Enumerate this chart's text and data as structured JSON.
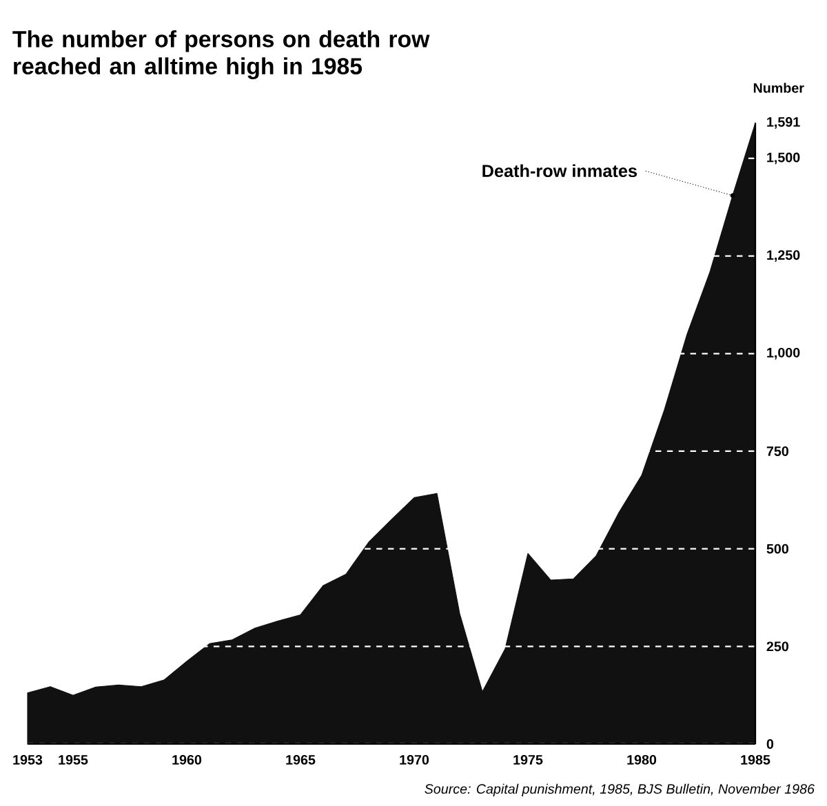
{
  "chart_data": {
    "type": "area",
    "title": "The number of persons on death row reached an alltime high in 1985",
    "ylabel": "Number",
    "x": [
      1953,
      1954,
      1955,
      1956,
      1957,
      1958,
      1959,
      1960,
      1961,
      1962,
      1963,
      1964,
      1965,
      1966,
      1967,
      1968,
      1969,
      1970,
      1971,
      1972,
      1973,
      1974,
      1975,
      1976,
      1977,
      1978,
      1979,
      1980,
      1981,
      1982,
      1983,
      1984,
      1985
    ],
    "series": [
      {
        "color": "#111111",
        "values": [
          131,
          147,
          125,
          146,
          151,
          147,
          164,
          212,
          257,
          267,
          297,
          315,
          331,
          406,
          435,
          517,
          575,
          631,
          642,
          334,
          134,
          244,
          488,
          420,
          423,
          482,
          593,
          688,
          856,
          1050,
          1209,
          1405,
          1591
        ]
      }
    ],
    "xlim": [
      1953,
      1985
    ],
    "xticks": [
      1953,
      1955,
      1960,
      1965,
      1970,
      1975,
      1980,
      1985
    ],
    "ylim": [
      0,
      1591
    ],
    "yticks": [
      0,
      250,
      500,
      750,
      {
        "value": 1000,
        "label": "1,000"
      },
      {
        "value": 1250,
        "label": "1,250"
      },
      {
        "value": 1500,
        "label": "1,500"
      },
      {
        "value": 1591,
        "label": "1,591"
      }
    ],
    "grid": "y",
    "annotations": [
      {
        "text": "Death-row inmates",
        "x": 1984,
        "y": 1405
      },
      "Source: Capital punishment, 1985, BJS Bulletin, November 1986"
    ]
  }
}
